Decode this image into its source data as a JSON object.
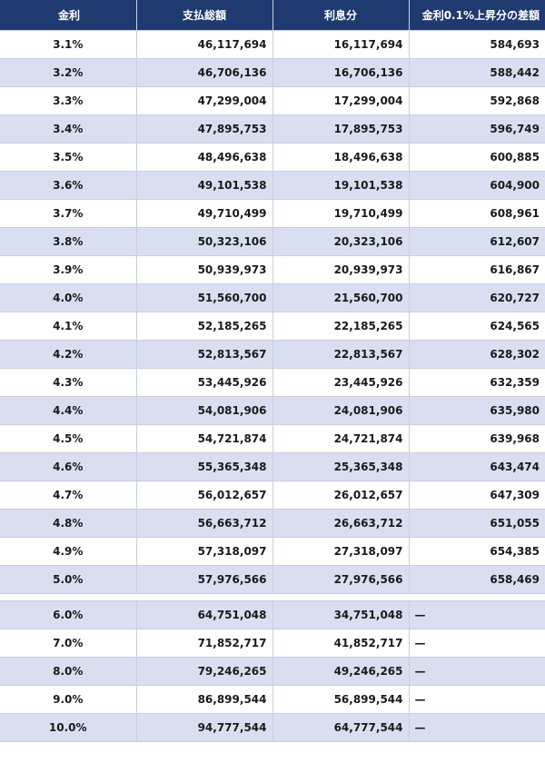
{
  "headers": {
    "rate": "金利",
    "total": "支払総額",
    "interest": "利息分",
    "diff": "金利0.1%上昇分の差額"
  },
  "rows": [
    {
      "rate": "3.1%",
      "total": "46,117,694",
      "interest": "16,117,694",
      "diff": "584,693"
    },
    {
      "rate": "3.2%",
      "total": "46,706,136",
      "interest": "16,706,136",
      "diff": "588,442"
    },
    {
      "rate": "3.3%",
      "total": "47,299,004",
      "interest": "17,299,004",
      "diff": "592,868"
    },
    {
      "rate": "3.4%",
      "total": "47,895,753",
      "interest": "17,895,753",
      "diff": "596,749"
    },
    {
      "rate": "3.5%",
      "total": "48,496,638",
      "interest": "18,496,638",
      "diff": "600,885"
    },
    {
      "rate": "3.6%",
      "total": "49,101,538",
      "interest": "19,101,538",
      "diff": "604,900"
    },
    {
      "rate": "3.7%",
      "total": "49,710,499",
      "interest": "19,710,499",
      "diff": "608,961"
    },
    {
      "rate": "3.8%",
      "total": "50,323,106",
      "interest": "20,323,106",
      "diff": "612,607"
    },
    {
      "rate": "3.9%",
      "total": "50,939,973",
      "interest": "20,939,973",
      "diff": "616,867"
    },
    {
      "rate": "4.0%",
      "total": "51,560,700",
      "interest": "21,560,700",
      "diff": "620,727"
    },
    {
      "rate": "4.1%",
      "total": "52,185,265",
      "interest": "22,185,265",
      "diff": "624,565"
    },
    {
      "rate": "4.2%",
      "total": "52,813,567",
      "interest": "22,813,567",
      "diff": "628,302"
    },
    {
      "rate": "4.3%",
      "total": "53,445,926",
      "interest": "23,445,926",
      "diff": "632,359"
    },
    {
      "rate": "4.4%",
      "total": "54,081,906",
      "interest": "24,081,906",
      "diff": "635,980"
    },
    {
      "rate": "4.5%",
      "total": "54,721,874",
      "interest": "24,721,874",
      "diff": "639,968"
    },
    {
      "rate": "4.6%",
      "total": "55,365,348",
      "interest": "25,365,348",
      "diff": "643,474"
    },
    {
      "rate": "4.7%",
      "total": "56,012,657",
      "interest": "26,012,657",
      "diff": "647,309"
    },
    {
      "rate": "4.8%",
      "total": "56,663,712",
      "interest": "26,663,712",
      "diff": "651,055"
    },
    {
      "rate": "4.9%",
      "total": "57,318,097",
      "interest": "27,318,097",
      "diff": "654,385"
    },
    {
      "rate": "5.0%",
      "total": "57,976,566",
      "interest": "27,976,566",
      "diff": "658,469"
    }
  ],
  "extra_rows": [
    {
      "rate": "6.0%",
      "total": "64,751,048",
      "interest": "34,751,048",
      "diff": "—"
    },
    {
      "rate": "7.0%",
      "total": "71,852,717",
      "interest": "41,852,717",
      "diff": "—"
    },
    {
      "rate": "8.0%",
      "total": "79,246,265",
      "interest": "49,246,265",
      "diff": "—"
    },
    {
      "rate": "9.0%",
      "total": "86,899,544",
      "interest": "56,899,544",
      "diff": "—"
    },
    {
      "rate": "10.0%",
      "total": "94,777,544",
      "interest": "64,777,544",
      "diff": "—"
    }
  ]
}
